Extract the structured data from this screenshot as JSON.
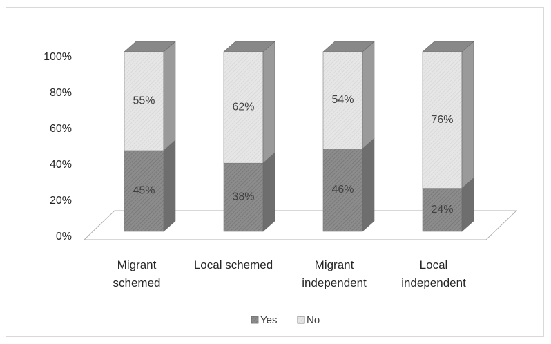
{
  "chart_data": {
    "type": "bar",
    "stacked": true,
    "three_d": true,
    "percent_stacked": true,
    "categories": [
      [
        "Migrant",
        "schemed"
      ],
      [
        "Local schemed"
      ],
      [
        "Migrant",
        "independent"
      ],
      [
        "Local",
        "independent"
      ]
    ],
    "series": [
      {
        "name": "Yes",
        "values": [
          45,
          38,
          46,
          24
        ],
        "labels": [
          "45%",
          "38%",
          "46%",
          "24%"
        ],
        "color": "#8c8c8c"
      },
      {
        "name": "No",
        "values": [
          55,
          62,
          54,
          76
        ],
        "labels": [
          "55%",
          "62%",
          "54%",
          "76%"
        ],
        "color": "#e3e3e3"
      }
    ],
    "y_ticks": [
      "0%",
      "20%",
      "40%",
      "60%",
      "80%",
      "100%"
    ],
    "ylim": [
      0,
      100
    ],
    "grid": false,
    "legend_position": "bottom"
  }
}
